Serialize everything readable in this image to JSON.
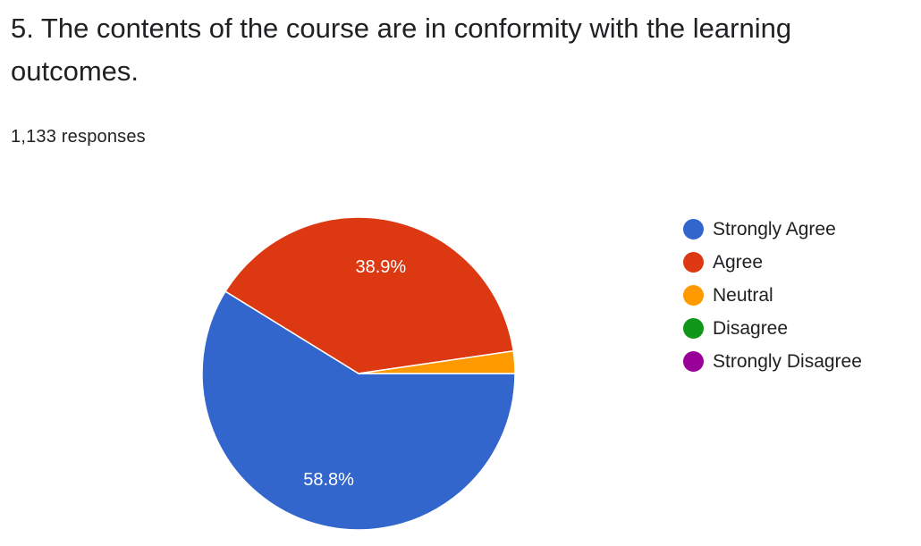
{
  "question": {
    "title": "5. The contents of the course are in conformity with the learning outcomes.",
    "response_count": "1,133 responses"
  },
  "chart_data": {
    "type": "pie",
    "title": "5. The contents of the course are in conformity with the learning outcomes.",
    "categories": [
      "Strongly Agree",
      "Agree",
      "Neutral",
      "Disagree",
      "Strongly Disagree"
    ],
    "values": [
      58.8,
      38.9,
      2.3,
      0.0,
      0.0
    ],
    "value_unit": "%",
    "slice_labels": [
      "58.8%",
      "38.9%",
      "",
      "",
      ""
    ],
    "colors": [
      "#3366cc",
      "#dc3912",
      "#ff9900",
      "#109618",
      "#990099"
    ],
    "legend_position": "right",
    "slice_border_color": "#ffffff"
  }
}
